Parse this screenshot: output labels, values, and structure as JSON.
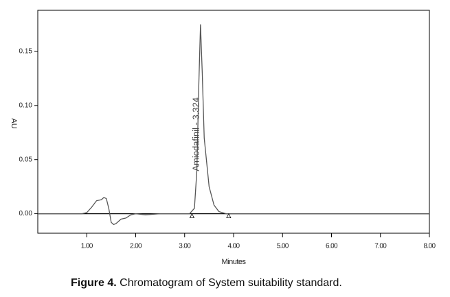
{
  "chart_data": {
    "type": "line",
    "title": "Figure 4.",
    "subtitle": "Chromatogram of System suitability standard.",
    "xlabel": "Minutes",
    "ylabel": "AU",
    "annotation": {
      "text": "Amiodafinil - 3.324",
      "x": 3.324,
      "y": 0.175
    },
    "xlim": [
      0,
      8
    ],
    "ylim": [
      -0.018,
      0.188
    ],
    "xticks": [
      {
        "value": 1,
        "label": "1.00"
      },
      {
        "value": 2,
        "label": "2.00"
      },
      {
        "value": 3,
        "label": "3.00"
      },
      {
        "value": 4,
        "label": "4.00"
      },
      {
        "value": 5,
        "label": "5.00"
      },
      {
        "value": 6,
        "label": "6.00"
      },
      {
        "value": 7,
        "label": "7.00"
      },
      {
        "value": 8,
        "label": "8.00"
      }
    ],
    "yticks": [
      {
        "value": 0,
        "label": "0.00"
      },
      {
        "value": 0.05,
        "label": "0.05"
      },
      {
        "value": 0.1,
        "label": "0.10"
      },
      {
        "value": 0.15,
        "label": "0.15"
      }
    ],
    "baseline": {
      "color": "#000000",
      "y": 0
    },
    "peak_markers": [
      3.15,
      3.9
    ],
    "series": [
      {
        "color": "#555555",
        "x": [
          0,
          0.9,
          1.0,
          1.1,
          1.2,
          1.3,
          1.35,
          1.4,
          1.45,
          1.5,
          1.55,
          1.6,
          1.7,
          1.8,
          1.9,
          2.0,
          2.2,
          2.5,
          3.1,
          3.2,
          3.25,
          3.29,
          3.324,
          3.36,
          3.4,
          3.5,
          3.6,
          3.7,
          3.85,
          8.0
        ],
        "values": [
          0,
          0,
          0.001,
          0.006,
          0.012,
          0.013,
          0.015,
          0.014,
          0.005,
          -0.008,
          -0.01,
          -0.009,
          -0.005,
          -0.004,
          -0.001,
          0,
          -0.001,
          0,
          0,
          0.005,
          0.04,
          0.12,
          0.175,
          0.13,
          0.07,
          0.025,
          0.008,
          0.002,
          0,
          0
        ]
      }
    ]
  }
}
